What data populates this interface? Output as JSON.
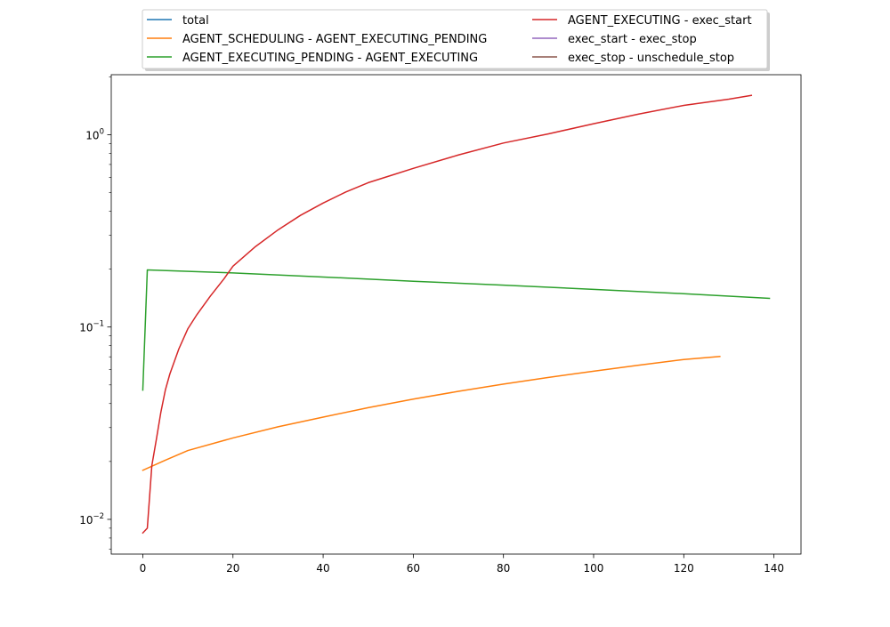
{
  "chart_data": {
    "type": "line",
    "title": "",
    "xlabel": "",
    "ylabel": "",
    "xlim": [
      -7,
      146
    ],
    "ylim": [
      0.0066,
      2.05
    ],
    "yscale": "log",
    "grid": false,
    "legend_position": "top-center, above plot, two columns",
    "xticks": [
      0,
      20,
      40,
      60,
      80,
      100,
      120,
      140
    ],
    "xtick_labels": [
      "0",
      "20",
      "40",
      "60",
      "80",
      "100",
      "120",
      "140"
    ],
    "yticks": [
      0.01,
      0.1,
      1
    ],
    "ytick_labels": [
      {
        "base": "10",
        "exp": "−2"
      },
      {
        "base": "10",
        "exp": "−1"
      },
      {
        "base": "10",
        "exp": "0"
      }
    ],
    "series": [
      {
        "name": "total",
        "color": "#1f77b4",
        "x": [],
        "y": []
      },
      {
        "name": "AGENT_SCHEDULING - AGENT_EXECUTING_PENDING",
        "color": "#ff7f0e",
        "x": [
          0,
          5,
          10,
          20,
          30,
          40,
          50,
          60,
          70,
          80,
          90,
          100,
          110,
          120,
          128
        ],
        "y": [
          0.018,
          0.0203,
          0.0228,
          0.0265,
          0.0303,
          0.034,
          0.0381,
          0.0422,
          0.0463,
          0.0505,
          0.0547,
          0.0589,
          0.0633,
          0.0678,
          0.0703
        ]
      },
      {
        "name": "AGENT_EXECUTING_PENDING - AGENT_EXECUTING",
        "color": "#2ca02c",
        "x": [
          0,
          1,
          20,
          40,
          60,
          80,
          100,
          120,
          139
        ],
        "y": [
          0.047,
          0.198,
          0.191,
          0.182,
          0.173,
          0.165,
          0.157,
          0.149,
          0.141
        ]
      },
      {
        "name": "AGENT_EXECUTING - exec_start",
        "color": "#d62728",
        "x": [
          0,
          1,
          2,
          3,
          4,
          5,
          6,
          8,
          10,
          12,
          15,
          18,
          20,
          25,
          30,
          35,
          40,
          45,
          50,
          55,
          60,
          70,
          80,
          90,
          100,
          110,
          120,
          130,
          135
        ],
        "y": [
          0.0085,
          0.009,
          0.019,
          0.026,
          0.036,
          0.047,
          0.057,
          0.077,
          0.098,
          0.116,
          0.145,
          0.178,
          0.207,
          0.262,
          0.32,
          0.381,
          0.441,
          0.503,
          0.563,
          0.613,
          0.668,
          0.784,
          0.905,
          1.01,
          1.14,
          1.28,
          1.42,
          1.53,
          1.6
        ]
      },
      {
        "name": "exec_start - exec_stop",
        "color": "#9467bd",
        "x": [],
        "y": []
      },
      {
        "name": "exec_stop - unschedule_stop",
        "color": "#8c564b",
        "x": [],
        "y": []
      }
    ]
  }
}
